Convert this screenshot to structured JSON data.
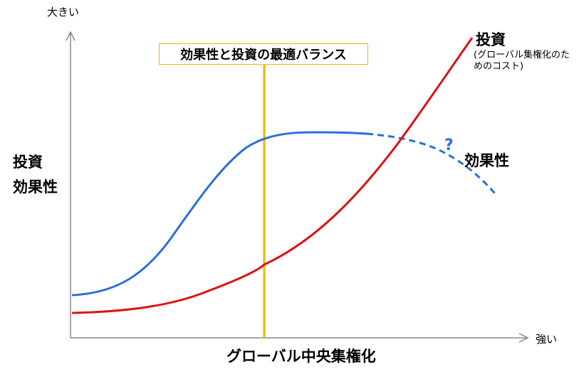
{
  "diagram": {
    "y_axis_top_label": "大きい",
    "y_axis_label_line1": "投資",
    "y_axis_label_line2": "効果性",
    "x_axis_end_label": "強い",
    "x_axis_title": "グローバル中央集権化",
    "balance_label": "効果性と投資の最適バランス",
    "investment_label": "投資",
    "investment_note": "(グローバル集権化のためのコスト)",
    "effectiveness_label": "効果性",
    "uncertainty_mark": "?"
  },
  "colors": {
    "effectiveness": "#2a6fdb",
    "investment": "#e01010",
    "balance_line": "#f0b400",
    "axis": "#888888"
  }
}
